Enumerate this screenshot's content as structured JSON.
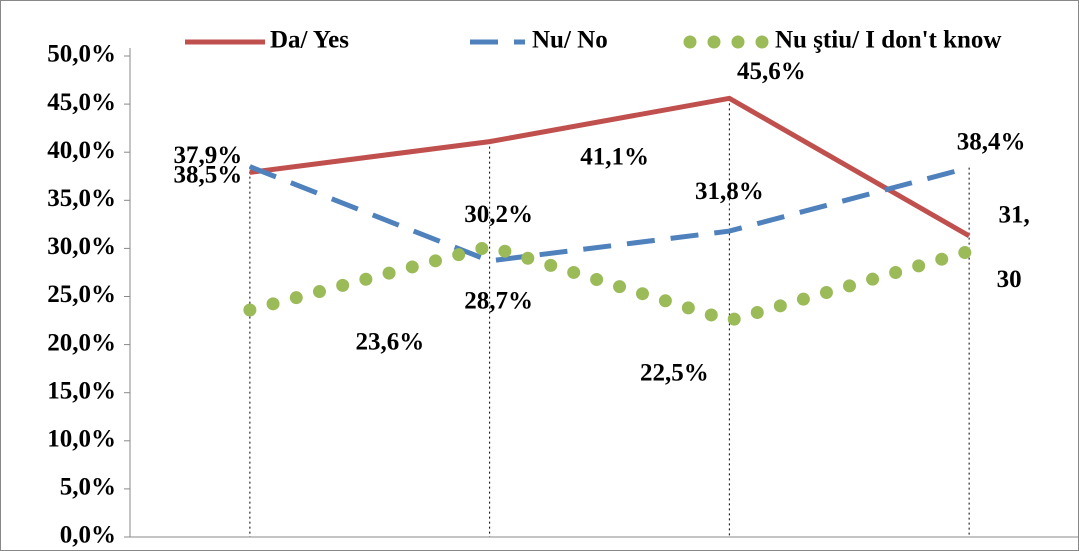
{
  "chart_data": {
    "type": "line",
    "categories": [
      null,
      null,
      null,
      null
    ],
    "series": [
      {
        "name": "Da/ Yes",
        "color": "#c0504d",
        "dash": "solid",
        "values": [
          37.9,
          41.1,
          45.6,
          31.3
        ],
        "value_labels": [
          "37,9%",
          "41,1%",
          "45,6%",
          "31,"
        ]
      },
      {
        "name": "Nu/ No",
        "color": "#4f81bd",
        "dash": "dashed",
        "values": [
          38.5,
          28.7,
          31.8,
          38.4
        ],
        "value_labels": [
          "38,5%",
          "28,7%",
          "31,8%",
          "38,4%"
        ]
      },
      {
        "name": "Nu ştiu/ I don't know",
        "color": "#9bbb59",
        "dash": "dotted",
        "values": [
          23.6,
          30.2,
          22.5,
          29.7
        ],
        "value_labels": [
          "23,6%",
          "30,2%",
          "22,5%",
          "30"
        ]
      }
    ],
    "ylim": [
      0,
      50
    ],
    "yticks": [
      {
        "value": 0,
        "label": "0,0%"
      },
      {
        "value": 5,
        "label": "5,0%"
      },
      {
        "value": 10,
        "label": "10,0%"
      },
      {
        "value": 15,
        "label": "15,0%"
      },
      {
        "value": 20,
        "label": "20,0%"
      },
      {
        "value": 25,
        "label": "25,0%"
      },
      {
        "value": 30,
        "label": "30,0%"
      },
      {
        "value": 35,
        "label": "35,0%"
      },
      {
        "value": 40,
        "label": "40,0%"
      },
      {
        "value": 45,
        "label": "45,0%"
      },
      {
        "value": 50,
        "label": "50,0%"
      }
    ],
    "legend": "top"
  }
}
